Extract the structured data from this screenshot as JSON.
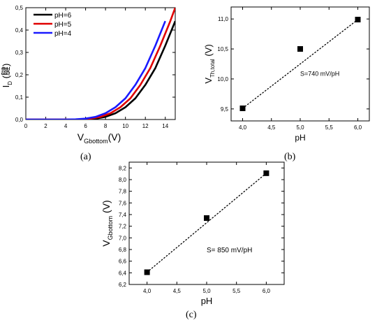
{
  "chart_data": [
    {
      "type": "line",
      "panel_label": "(a)",
      "ylabel": {
        "main": "I",
        "sub": "D",
        "tail": " (腱)"
      },
      "xlabel": {
        "main": "V",
        "sub": "Gbottom",
        "tail": "(V)"
      },
      "xlim": [
        0,
        15
      ],
      "ylim": [
        0.0,
        0.5
      ],
      "xticks": [
        0,
        2,
        4,
        6,
        8,
        10,
        12,
        14
      ],
      "yticks": [
        0.0,
        0.1,
        0.2,
        0.3,
        0.4,
        0.5
      ],
      "xtick_labels": [
        "0",
        "2",
        "4",
        "6",
        "8",
        "10",
        "12",
        "14"
      ],
      "ytick_labels": [
        "0,0",
        "0,1",
        "0,2",
        "0,3",
        "0,4",
        "0,5"
      ],
      "legend": "top-left",
      "series": [
        {
          "name": "pH=6",
          "color": "#000000",
          "x": [
            0,
            5,
            6,
            7,
            8,
            9,
            10,
            11,
            12,
            13,
            14,
            15
          ],
          "y": [
            0,
            0,
            0.001,
            0.004,
            0.012,
            0.028,
            0.055,
            0.095,
            0.155,
            0.23,
            0.33,
            0.44
          ]
        },
        {
          "name": "pH=5",
          "color": "#e00000",
          "x": [
            0,
            4.5,
            5.5,
            6.5,
            7.5,
            8.5,
            9.5,
            10.5,
            11.5,
            12.5,
            13.5,
            14.5,
            15
          ],
          "y": [
            0,
            0,
            0.001,
            0.004,
            0.012,
            0.028,
            0.055,
            0.095,
            0.155,
            0.23,
            0.33,
            0.44,
            0.5
          ]
        },
        {
          "name": "pH=4",
          "color": "#1a1aff",
          "x": [
            0,
            4,
            5,
            6,
            7,
            8,
            9,
            10,
            11,
            12,
            13,
            14
          ],
          "y": [
            0,
            0,
            0.001,
            0.004,
            0.012,
            0.028,
            0.055,
            0.095,
            0.155,
            0.23,
            0.33,
            0.44
          ]
        }
      ]
    },
    {
      "type": "scatter",
      "panel_label": "(b)",
      "ylabel": {
        "main": "V",
        "sub": "Th,total",
        "tail": " (V)"
      },
      "xlabel": {
        "main": "pH",
        "sub": "",
        "tail": ""
      },
      "xlim": [
        3.8,
        6.2
      ],
      "ylim": [
        9.3,
        11.2
      ],
      "xticks": [
        4.0,
        4.5,
        5.0,
        5.5,
        6.0
      ],
      "yticks": [
        9.5,
        10.0,
        10.5,
        11.0
      ],
      "xtick_labels": [
        "4,0",
        "4,5",
        "5,0",
        "5,5",
        "6,0"
      ],
      "ytick_labels": [
        "9,5",
        "10,0",
        "10,5",
        "11,0"
      ],
      "annotation": {
        "text": "S=740 mV/pH",
        "x": 5.0,
        "y": 10.05
      },
      "points": {
        "x": [
          4.0,
          5.0,
          6.0
        ],
        "y": [
          9.51,
          10.5,
          10.99
        ]
      },
      "fit_line": {
        "x": [
          4.0,
          6.0
        ],
        "y": [
          9.51,
          10.99
        ],
        "style": "dotted"
      }
    },
    {
      "type": "scatter",
      "panel_label": "(c)",
      "ylabel": {
        "main": "V",
        "sub": "Gbottom",
        "tail": " (V)"
      },
      "xlabel": {
        "main": "pH",
        "sub": "",
        "tail": ""
      },
      "xlim": [
        3.7,
        6.3
      ],
      "ylim": [
        6.2,
        8.3
      ],
      "xticks": [
        4.0,
        4.5,
        5.0,
        5.5,
        6.0
      ],
      "yticks": [
        6.2,
        6.4,
        6.6,
        6.8,
        7.0,
        7.2,
        7.4,
        7.6,
        7.8,
        8.0,
        8.2
      ],
      "xtick_labels": [
        "4,0",
        "4,5",
        "5,0",
        "5,5",
        "6,0"
      ],
      "ytick_labels": [
        "6,2",
        "6,4",
        "6,6",
        "6,8",
        "7,0",
        "7,2",
        "7,4",
        "7,6",
        "7,8",
        "8,0",
        "8,2"
      ],
      "annotation": {
        "text": "S= 850 mV/pH",
        "x": 5.0,
        "y": 6.75
      },
      "points": {
        "x": [
          4.0,
          5.0,
          6.0
        ],
        "y": [
          6.41,
          7.34,
          8.11
        ]
      },
      "fit_line": {
        "x": [
          4.0,
          6.0
        ],
        "y": [
          6.41,
          8.11
        ],
        "style": "dotted"
      }
    }
  ]
}
